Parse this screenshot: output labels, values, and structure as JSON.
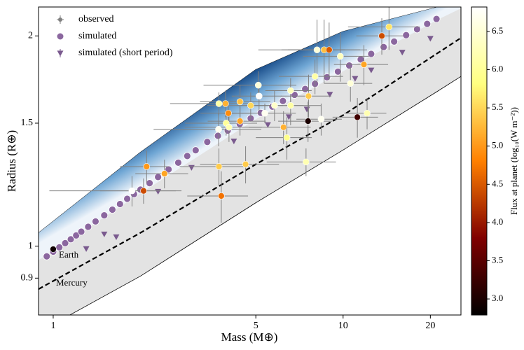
{
  "chart_data": {
    "type": "scatter",
    "xlabel": "Mass (M⊕)",
    "ylabel": "Radius (R⊕)",
    "xscale": "log",
    "yscale": "log",
    "xlim": [
      0.89,
      25.5
    ],
    "ylim": [
      0.797,
      2.2
    ],
    "xticks": [
      1,
      5,
      10,
      20
    ],
    "yticks": [
      0.9,
      1,
      1.5,
      2
    ],
    "legend": "upper left",
    "annotations": [
      "Earth",
      "Mercury"
    ],
    "regions": [
      {
        "color": "#e3e3e3",
        "x": [
          0.89,
          2,
          5,
          10,
          21.2,
          25.5
        ],
        "upper": [
          1.045,
          1.363,
          1.79,
          2.03,
          2.2,
          2.24
        ],
        "lower": [
          0.753,
          0.906,
          1.154,
          1.373,
          1.667,
          1.75
        ]
      },
      {
        "colors": [
          "#1b4f8c",
          "#6fa6d4",
          "#eef4fa"
        ],
        "x": [
          0.89,
          2,
          5,
          10,
          21.2,
          25.5
        ],
        "upper": [
          1.045,
          1.363,
          1.79,
          2.03,
          2.2,
          2.24
        ],
        "lower": [
          0.955,
          1.19,
          1.52,
          1.78,
          2.11,
          2.19
        ]
      }
    ],
    "dashed_line": {
      "color": "#000000",
      "x": [
        0.89,
        2,
        5,
        10,
        21.2,
        25.5
      ],
      "y": [
        0.868,
        1.045,
        1.31,
        1.54,
        1.89,
        1.987
      ]
    },
    "series": [
      {
        "name": "observed",
        "color": "#808080",
        "marker": "errorbar",
        "x": [
          1.0,
          1.87,
          2.05,
          2.1,
          2.42,
          3.72,
          3.73,
          3.93,
          3.8,
          3.73,
          3.95,
          4.04,
          4.02,
          4.41,
          4.41,
          4.8,
          4.61,
          5.1,
          5.13,
          5.37,
          5.8,
          6.23,
          6.59,
          6.59,
          6.4,
          7.57,
          7.45,
          7.6,
          8.0,
          8.13,
          8.4,
          8.6,
          8.95,
          9.78,
          10.6,
          11.2,
          11.8,
          12.1,
          13.6,
          14.4
        ],
        "y": [
          0.99,
          1.2,
          1.2,
          1.3,
          1.27,
          1.47,
          1.6,
          1.6,
          1.18,
          1.3,
          1.5,
          1.48,
          1.55,
          1.51,
          1.61,
          1.59,
          1.31,
          1.7,
          1.64,
          1.55,
          1.59,
          1.48,
          1.59,
          1.67,
          1.43,
          1.51,
          1.32,
          1.64,
          1.75,
          1.91,
          1.52,
          1.91,
          1.91,
          1.87,
          1.71,
          1.53,
          1.82,
          1.55,
          2.0,
          2.06
        ],
        "xerr": [
          0,
          0.9,
          0.6,
          0.4,
          0.5,
          1.5,
          1.2,
          1.0,
          0.9,
          1.0,
          1.1,
          1.2,
          0.8,
          1.0,
          1.2,
          1.4,
          1.4,
          1.8,
          1.0,
          1.5,
          1.5,
          1.5,
          1.8,
          1.2,
          1.4,
          1.6,
          2.0,
          1.5,
          2.0,
          2.0,
          1.5,
          3.5,
          2.5,
          2.5,
          2.0,
          2.0,
          2.5,
          2.0,
          2.5,
          4.0
        ],
        "yerr": [
          0,
          0.06,
          0.05,
          0.07,
          0.06,
          0.08,
          0.06,
          0.07,
          0.1,
          0.08,
          0.06,
          0.07,
          0.06,
          0.07,
          0.09,
          0.07,
          0.08,
          0.08,
          0.08,
          0.05,
          0.08,
          0.08,
          0.1,
          0.07,
          0.1,
          0.1,
          0.06,
          0.12,
          0.1,
          0.2,
          0.08,
          0.2,
          0.18,
          0.15,
          0.1,
          0.1,
          0.12,
          0.08,
          0.12,
          0.15
        ],
        "flux": [
          2.9,
          6.8,
          4.4,
          5.0,
          5.1,
          6.7,
          6.1,
          5.2,
          4.7,
          5.4,
          6.0,
          6.2,
          4.9,
          5.1,
          5.3,
          5.5,
          5.4,
          6.5,
          6.8,
          6.7,
          6.4,
          5.2,
          6.1,
          6.3,
          5.9,
          3.0,
          6.2,
          5.4,
          6.1,
          6.5,
          6.7,
          5.3,
          4.5,
          6.3,
          6.5,
          3.3,
          5.1,
          6.2,
          4.4,
          5.6
        ]
      },
      {
        "name": "simulated",
        "color": "#8b679f",
        "marker": "circle",
        "x": [
          0.95,
          1.0,
          1.05,
          1.1,
          1.15,
          1.2,
          1.25,
          1.32,
          1.4,
          1.5,
          1.6,
          1.7,
          1.8,
          1.9,
          2.0,
          2.15,
          2.3,
          2.5,
          2.7,
          2.9,
          3.1,
          3.4,
          3.7,
          4.0,
          4.4,
          4.8,
          5.2,
          5.7,
          6.2,
          6.8,
          7.4,
          8.0,
          8.8,
          9.6,
          10.5,
          11.5,
          12.5,
          13.8,
          15,
          16.5,
          18,
          19.5,
          21
        ],
        "y": [
          0.967,
          0.982,
          0.996,
          1.01,
          1.023,
          1.036,
          1.049,
          1.066,
          1.085,
          1.107,
          1.128,
          1.149,
          1.169,
          1.187,
          1.205,
          1.231,
          1.256,
          1.288,
          1.317,
          1.346,
          1.372,
          1.41,
          1.439,
          1.464,
          1.496,
          1.524,
          1.552,
          1.584,
          1.614,
          1.647,
          1.679,
          1.708,
          1.745,
          1.778,
          1.814,
          1.851,
          1.885,
          1.928,
          1.963,
          2.005,
          2.044,
          2.081,
          2.115
        ]
      },
      {
        "name": "simulated (short period)",
        "color": "#7a5a8e",
        "marker": "triangle",
        "x": [
          1.3,
          1.5,
          1.65,
          2.3,
          3.0,
          4.2,
          5.5,
          6.5,
          7.5,
          9.0,
          11.0,
          12.5,
          16,
          20
        ],
        "y": [
          1.01,
          1.06,
          1.05,
          1.22,
          1.32,
          1.44,
          1.52,
          1.56,
          1.6,
          1.68,
          1.77,
          1.82,
          1.93,
          2.02
        ]
      }
    ],
    "colorbar": {
      "label": "Flux at planet (log₁₀(W m⁻²))",
      "colormap": "afmhot",
      "lim": [
        2.79,
        6.82
      ],
      "ticks": [
        {
          "value": 3,
          "label": "3.0"
        },
        {
          "value": 3.5,
          "label": "3.5"
        },
        {
          "value": 4,
          "label": "4.0"
        },
        {
          "value": 4.5,
          "label": "4.5"
        },
        {
          "value": 5,
          "label": "5.0"
        },
        {
          "value": 5.5,
          "label": "5.5"
        },
        {
          "value": 6,
          "label": "6.0"
        },
        {
          "value": 6.5,
          "label": "6.5"
        }
      ]
    }
  }
}
